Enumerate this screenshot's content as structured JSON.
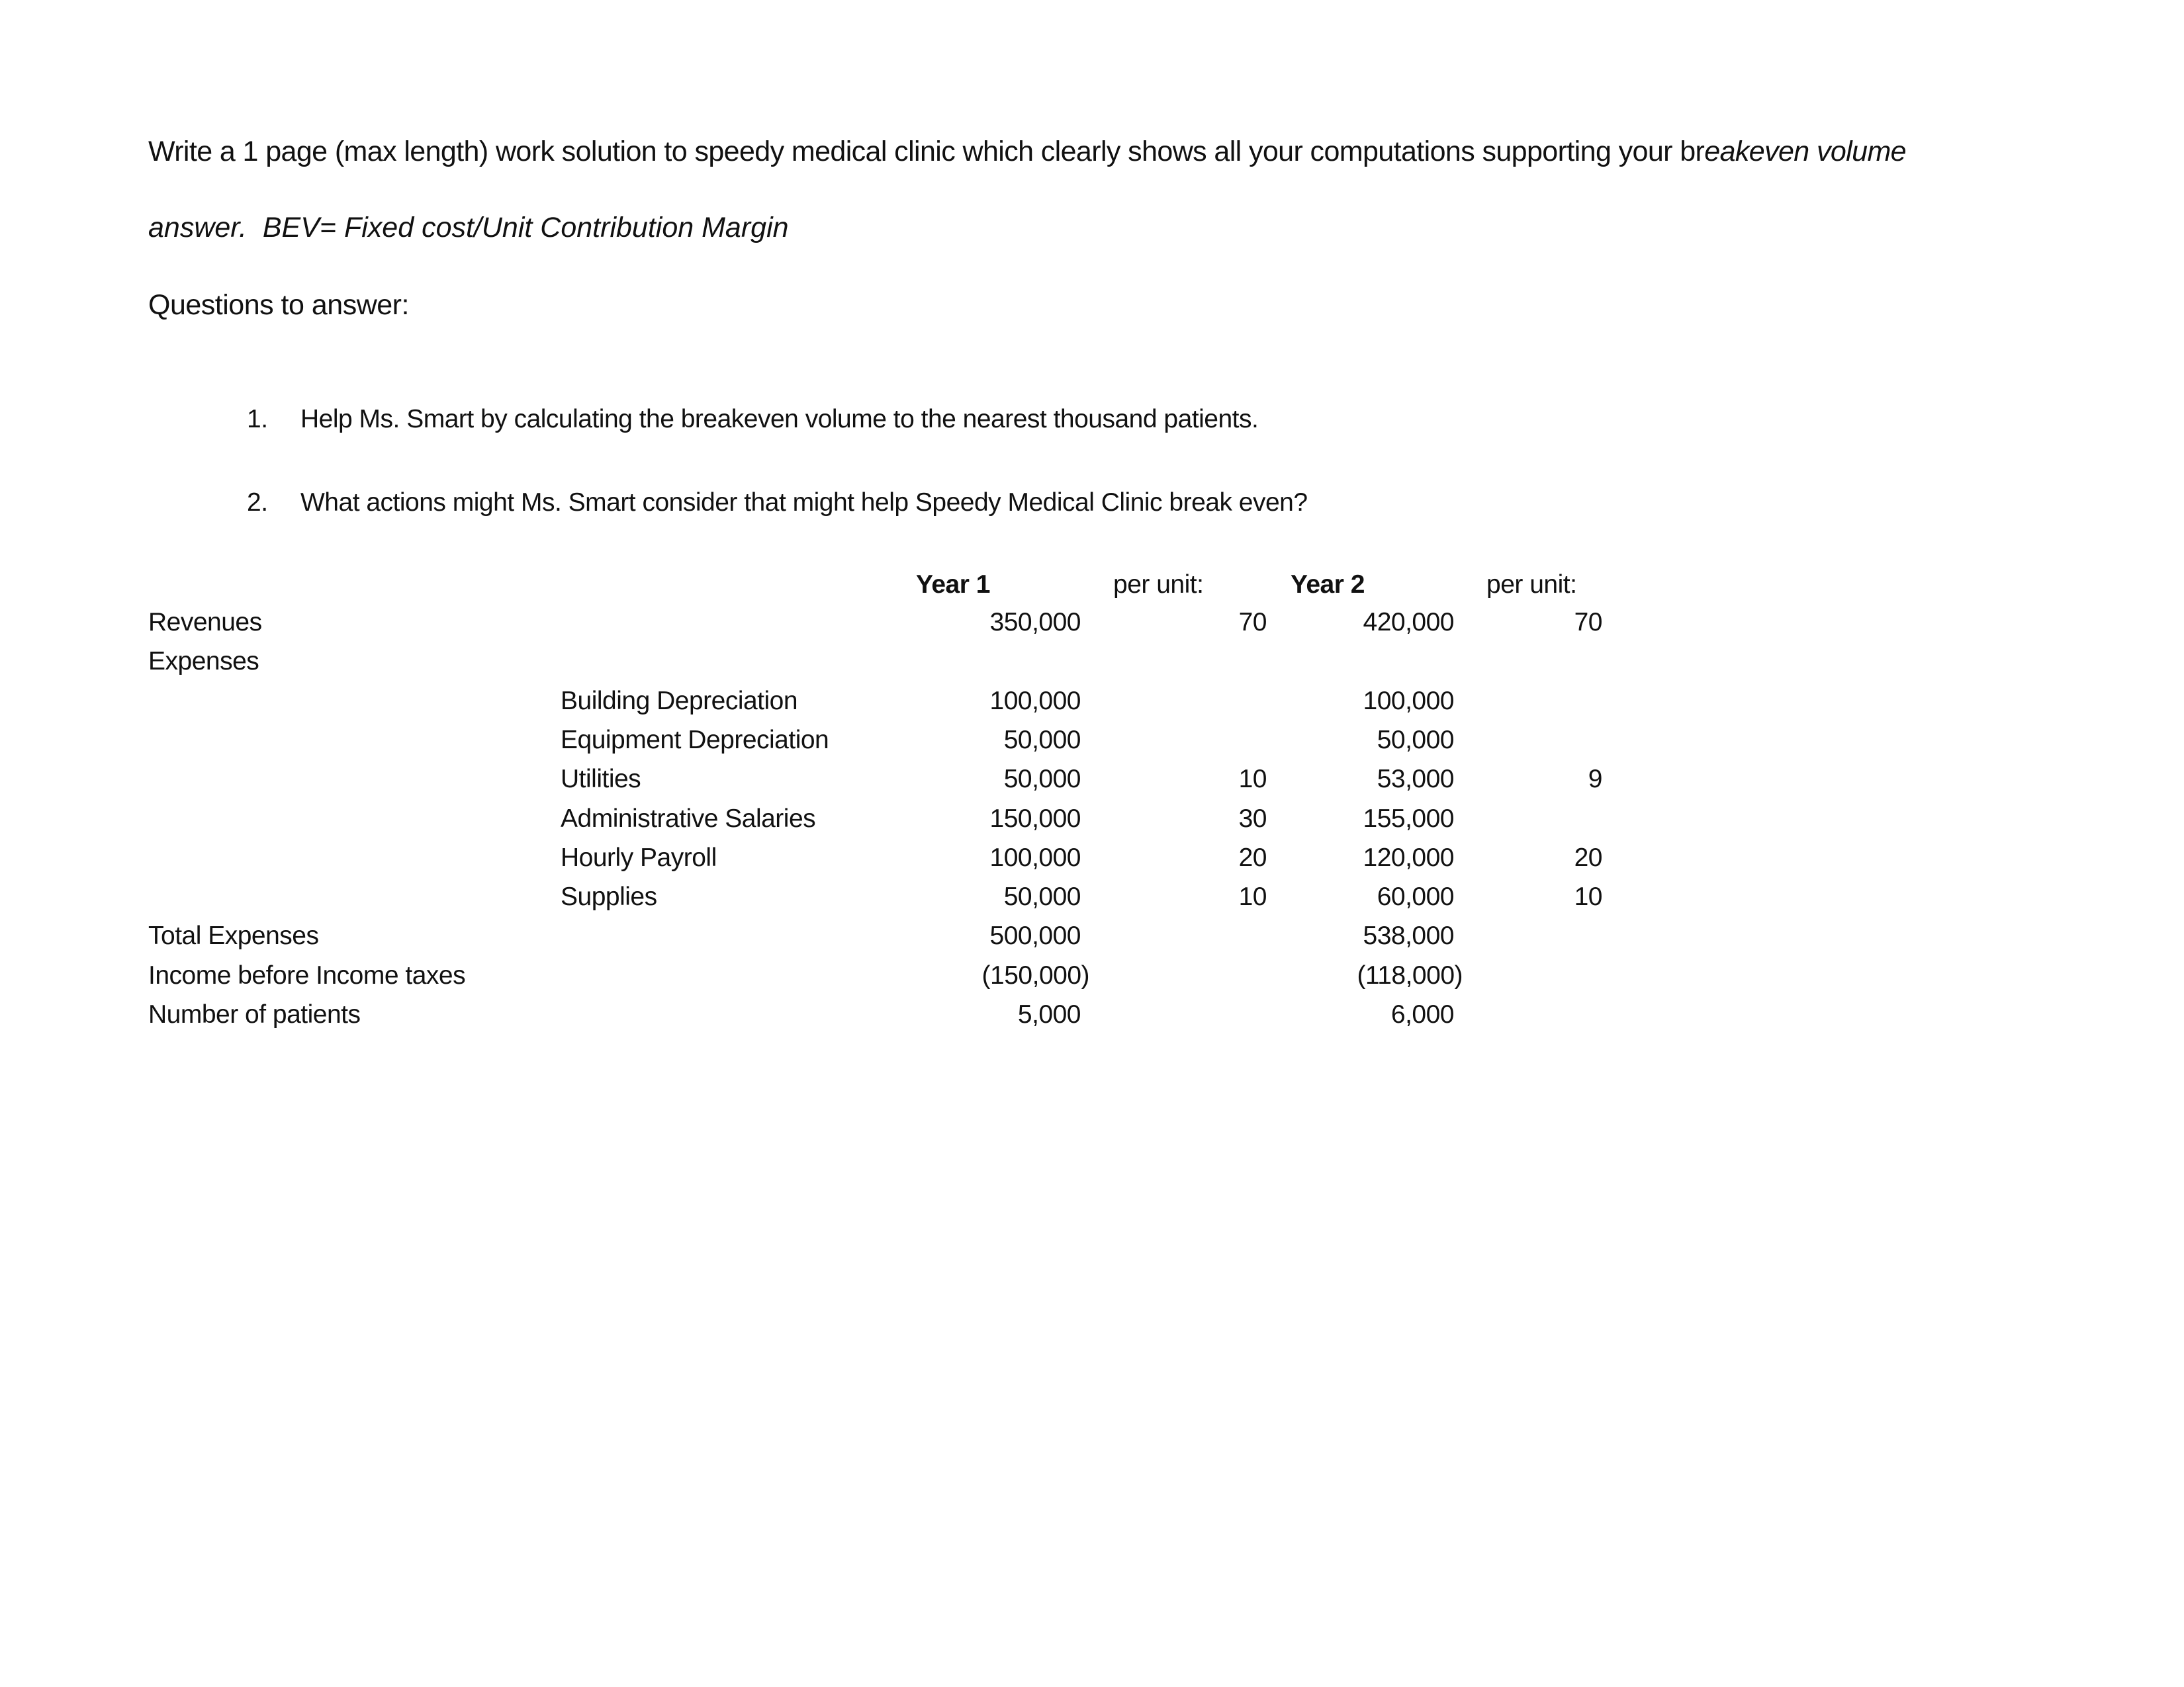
{
  "instructions": {
    "line1_prefix": "Write a 1 page (max length) work solution to speedy medical clinic which clearly shows all your computations supporting your br",
    "line1_italic": "eakeven volume",
    "line2_answer": "answer.",
    "line2_formula": "BEV= Fixed cost/Unit Contribution Margin",
    "questions_heading": "Questions  to answer:"
  },
  "questions": [
    {
      "number": "1.",
      "text": "Help Ms. Smart by calculating the breakeven volume to the nearest thousand patients."
    },
    {
      "number": "2.",
      "text": "What actions might Ms. Smart consider that might help Speedy Medical Clinic break even?"
    }
  ],
  "table": {
    "headers": {
      "year1": "Year 1",
      "per_unit1": "per unit:",
      "year2": "Year 2",
      "per_unit2": "per unit:"
    },
    "rows": [
      {
        "label": "Revenues",
        "sub": "",
        "year1": "350,000",
        "pu1": "70",
        "year2": "420,000",
        "pu2": "70"
      },
      {
        "label": "Expenses",
        "sub": "",
        "year1": "",
        "pu1": "",
        "year2": "",
        "pu2": ""
      },
      {
        "label": "",
        "sub": "Building Depreciation",
        "year1": "100,000",
        "pu1": "",
        "year2": "100,000",
        "pu2": ""
      },
      {
        "label": "",
        "sub": "Equipment Depreciation",
        "year1": "50,000",
        "pu1": "",
        "year2": "50,000",
        "pu2": ""
      },
      {
        "label": "",
        "sub": "Utilities",
        "year1": "50,000",
        "pu1": "10",
        "year2": "53,000",
        "pu2": "9"
      },
      {
        "label": "",
        "sub": "Administrative Salaries",
        "year1": "150,000",
        "pu1": "30",
        "year2": "155,000",
        "pu2": ""
      },
      {
        "label": "",
        "sub": "Hourly Payroll",
        "year1": "100,000",
        "pu1": "20",
        "year2": "120,000",
        "pu2": "20"
      },
      {
        "label": "",
        "sub": "Supplies",
        "year1": "50,000",
        "pu1": "10",
        "year2": "60,000",
        "pu2": "10"
      },
      {
        "label": "Total Expenses",
        "sub": "",
        "year1": "500,000",
        "pu1": "",
        "year2": "538,000",
        "pu2": ""
      },
      {
        "label": "Income before Income taxes",
        "sub": "",
        "year1": "(150,000)",
        "pu1": "",
        "year2": "(118,000)",
        "pu2": ""
      },
      {
        "label": "Number of patients",
        "sub": "",
        "year1": "5,000",
        "pu1": "",
        "year2": "6,000",
        "pu2": ""
      }
    ]
  }
}
